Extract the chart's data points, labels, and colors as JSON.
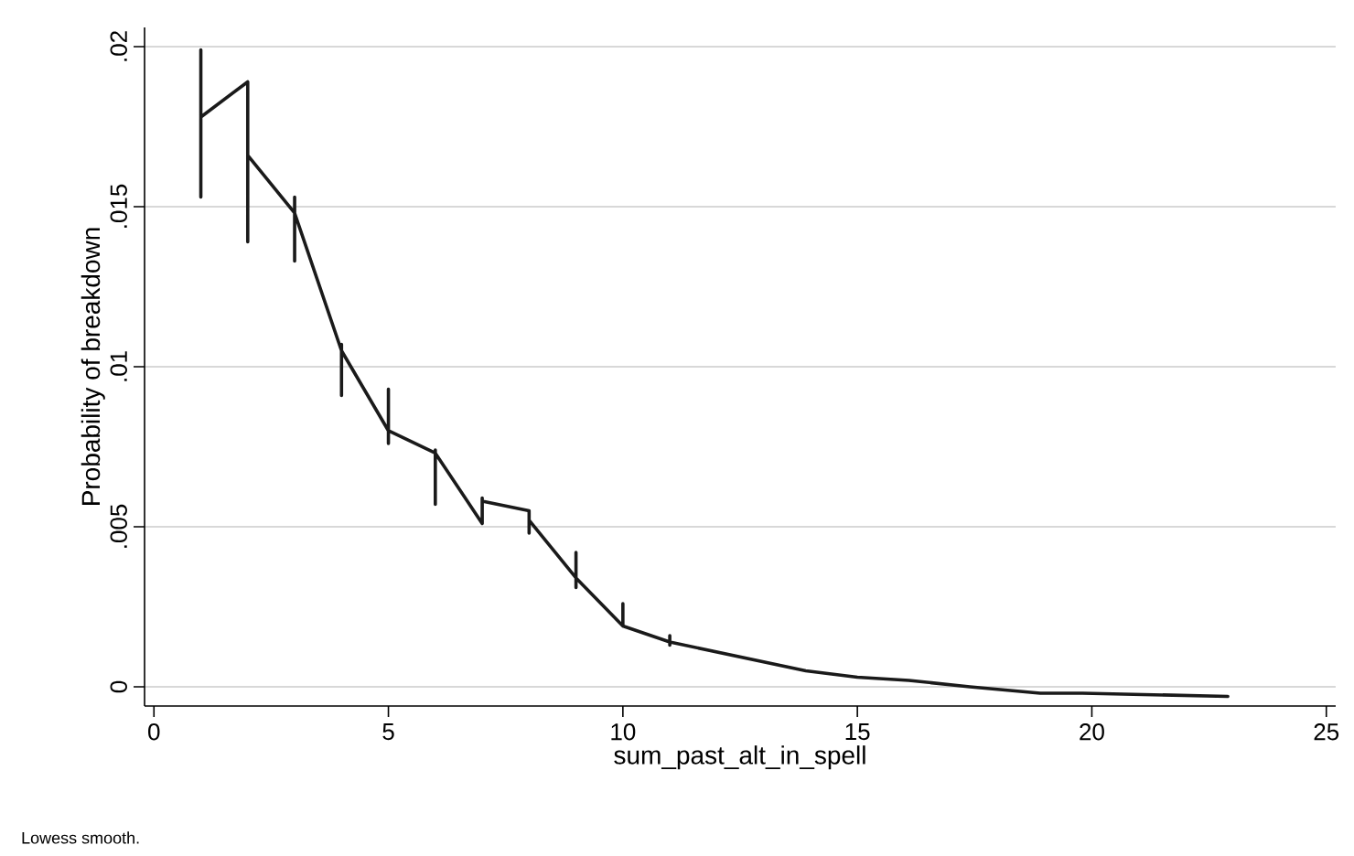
{
  "chart_data": {
    "type": "line",
    "xlabel": "sum_past_alt_in_spell",
    "ylabel": "Probability of breakdown",
    "annotations": [
      "Lowess smooth."
    ],
    "x": [
      1,
      1,
      1,
      2,
      2,
      2,
      3,
      3,
      3,
      3,
      4,
      4,
      4,
      4,
      5,
      5,
      5,
      5,
      6,
      6,
      6,
      6,
      7,
      7,
      7,
      8,
      8,
      8,
      9,
      9,
      9,
      9,
      10,
      10,
      10,
      11,
      11,
      11,
      11,
      13.9,
      15,
      16.1,
      17.4,
      18.9,
      19.8,
      22.9
    ],
    "series": [
      {
        "color": "#1a1a1a",
        "values": [
          0.0199,
          0.0153,
          0.0178,
          0.0189,
          0.0139,
          0.0166,
          0.0148,
          0.0153,
          0.0133,
          0.0148,
          0.0105,
          0.0107,
          0.0091,
          0.0105,
          0.008,
          0.0093,
          0.0076,
          0.008,
          0.0073,
          0.0074,
          0.0057,
          0.0073,
          0.0051,
          0.0059,
          0.0058,
          0.0055,
          0.0048,
          0.0052,
          0.0034,
          0.0042,
          0.0031,
          0.0034,
          0.0019,
          0.0026,
          0.0019,
          0.0014,
          0.0016,
          0.0013,
          0.0014,
          0.0005,
          0.0003,
          0.0002,
          0.0,
          -0.0002,
          -0.0002,
          -0.0003
        ]
      }
    ],
    "xlim": [
      -0.2,
      25.2
    ],
    "ylim": [
      -0.0006,
      0.0206
    ],
    "xticks": [
      0,
      5,
      10,
      15,
      20,
      25
    ],
    "yticks": [
      {
        "value": 0,
        "label": "0"
      },
      {
        "value": 0.005,
        "label": ".005"
      },
      {
        "value": 0.01,
        "label": ".01"
      },
      {
        "value": 0.015,
        "label": ".015"
      },
      {
        "value": 0.02,
        "label": ".02"
      }
    ],
    "grid": "y",
    "marker": "none",
    "line_style": "solid"
  }
}
